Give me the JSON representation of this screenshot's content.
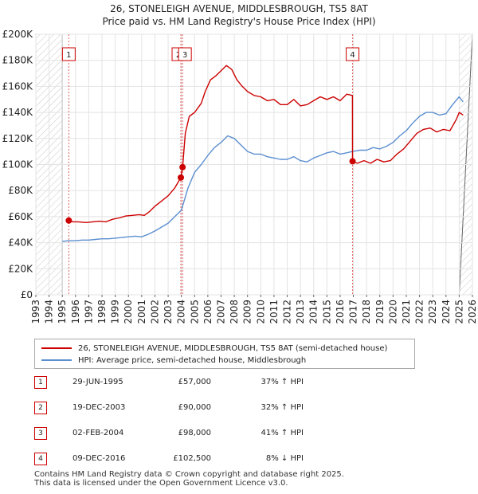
{
  "title_line1": "26, STONELEIGH AVENUE, MIDDLESBROUGH, TS5 8AT",
  "title_line2": "Price paid vs. HM Land Registry's House Price Index (HPI)",
  "chart_data": {
    "type": "line",
    "x_range": [
      1993,
      2026
    ],
    "ylim": [
      0,
      200000
    ],
    "y_ticks": [
      {
        "value": 0,
        "label": "£0"
      },
      {
        "value": 20000,
        "label": "£20K"
      },
      {
        "value": 40000,
        "label": "£40K"
      },
      {
        "value": 60000,
        "label": "£60K"
      },
      {
        "value": 80000,
        "label": "£80K"
      },
      {
        "value": 100000,
        "label": "£100K"
      },
      {
        "value": 120000,
        "label": "£120K"
      },
      {
        "value": 140000,
        "label": "£140K"
      },
      {
        "value": 160000,
        "label": "£160K"
      },
      {
        "value": 180000,
        "label": "£180K"
      },
      {
        "value": 200000,
        "label": "£200K"
      }
    ],
    "x_ticks": [
      "1993",
      "1994",
      "1995",
      "1996",
      "1997",
      "1998",
      "1999",
      "2000",
      "2001",
      "2002",
      "2003",
      "2004",
      "2005",
      "2006",
      "2007",
      "2008",
      "2009",
      "2010",
      "2011",
      "2012",
      "2013",
      "2014",
      "2015",
      "2016",
      "2017",
      "2018",
      "2019",
      "2020",
      "2021",
      "2022",
      "2023",
      "2024",
      "2025",
      "2026"
    ],
    "hatched_ranges": [
      [
        1993,
        1995.0
      ],
      [
        2025.0,
        2026
      ]
    ],
    "series": [
      {
        "name": "26, STONELEIGH AVENUE, MIDDLESBROUGH, TS5 8AT (semi-detached house)",
        "color": "#cc0000",
        "points": [
          [
            1995.49,
            57000
          ],
          [
            1995.8,
            56000
          ],
          [
            1996.2,
            56000
          ],
          [
            1996.8,
            55500
          ],
          [
            1997.3,
            56000
          ],
          [
            1997.8,
            56500
          ],
          [
            1998.3,
            56000
          ],
          [
            1998.8,
            58000
          ],
          [
            1999.3,
            59000
          ],
          [
            1999.8,
            60500
          ],
          [
            2000.3,
            61000
          ],
          [
            2000.8,
            61500
          ],
          [
            2001.2,
            61000
          ],
          [
            2001.6,
            64000
          ],
          [
            2002.0,
            68000
          ],
          [
            2002.5,
            72000
          ],
          [
            2003.0,
            76000
          ],
          [
            2003.5,
            82000
          ],
          [
            2003.96,
            90000
          ],
          [
            2004.09,
            98000
          ],
          [
            2004.3,
            124000
          ],
          [
            2004.6,
            137000
          ],
          [
            2005.0,
            140000
          ],
          [
            2005.5,
            147000
          ],
          [
            2005.8,
            156000
          ],
          [
            2006.2,
            165000
          ],
          [
            2006.6,
            168000
          ],
          [
            2007.0,
            172000
          ],
          [
            2007.4,
            176000
          ],
          [
            2007.8,
            173000
          ],
          [
            2008.2,
            165000
          ],
          [
            2008.6,
            160000
          ],
          [
            2009.0,
            156000
          ],
          [
            2009.5,
            153000
          ],
          [
            2010.0,
            152000
          ],
          [
            2010.5,
            149000
          ],
          [
            2011.0,
            150000
          ],
          [
            2011.5,
            146000
          ],
          [
            2012.0,
            146000
          ],
          [
            2012.5,
            150000
          ],
          [
            2013.0,
            145000
          ],
          [
            2013.5,
            146000
          ],
          [
            2014.0,
            149000
          ],
          [
            2014.5,
            152000
          ],
          [
            2015.0,
            150000
          ],
          [
            2015.5,
            152000
          ],
          [
            2016.0,
            149000
          ],
          [
            2016.5,
            154000
          ],
          [
            2016.93,
            153000
          ],
          [
            2016.94,
            102500
          ],
          [
            2017.3,
            101000
          ],
          [
            2017.8,
            103000
          ],
          [
            2018.3,
            101000
          ],
          [
            2018.8,
            104000
          ],
          [
            2019.3,
            102000
          ],
          [
            2019.8,
            103000
          ],
          [
            2020.3,
            108000
          ],
          [
            2020.8,
            112000
          ],
          [
            2021.3,
            118000
          ],
          [
            2021.8,
            124000
          ],
          [
            2022.3,
            127000
          ],
          [
            2022.8,
            128000
          ],
          [
            2023.3,
            125000
          ],
          [
            2023.8,
            127000
          ],
          [
            2024.3,
            126000
          ],
          [
            2024.8,
            135000
          ],
          [
            2025.0,
            140000
          ],
          [
            2025.3,
            138000
          ]
        ]
      },
      {
        "name": "HPI: Average price, semi-detached house, Middlesbrough",
        "color": "#5b8fd0",
        "points": [
          [
            1995.0,
            41000
          ],
          [
            1995.5,
            41500
          ],
          [
            1996.0,
            41500
          ],
          [
            1996.5,
            42000
          ],
          [
            1997.0,
            42000
          ],
          [
            1997.5,
            42500
          ],
          [
            1998.0,
            43000
          ],
          [
            1998.5,
            43000
          ],
          [
            1999.0,
            43500
          ],
          [
            1999.5,
            44000
          ],
          [
            2000.0,
            44500
          ],
          [
            2000.5,
            45000
          ],
          [
            2001.0,
            44500
          ],
          [
            2001.5,
            46500
          ],
          [
            2002.0,
            49000
          ],
          [
            2002.5,
            52000
          ],
          [
            2003.0,
            55000
          ],
          [
            2003.5,
            60000
          ],
          [
            2004.0,
            65000
          ],
          [
            2004.5,
            82000
          ],
          [
            2005.0,
            94000
          ],
          [
            2005.5,
            100000
          ],
          [
            2006.0,
            107000
          ],
          [
            2006.5,
            113000
          ],
          [
            2007.0,
            117000
          ],
          [
            2007.5,
            122000
          ],
          [
            2008.0,
            120000
          ],
          [
            2008.5,
            115000
          ],
          [
            2009.0,
            110000
          ],
          [
            2009.5,
            108000
          ],
          [
            2010.0,
            108000
          ],
          [
            2010.5,
            106000
          ],
          [
            2011.0,
            105000
          ],
          [
            2011.5,
            104000
          ],
          [
            2012.0,
            104000
          ],
          [
            2012.5,
            106000
          ],
          [
            2013.0,
            103000
          ],
          [
            2013.5,
            102000
          ],
          [
            2014.0,
            105000
          ],
          [
            2014.5,
            107000
          ],
          [
            2015.0,
            109000
          ],
          [
            2015.5,
            110000
          ],
          [
            2016.0,
            108000
          ],
          [
            2016.5,
            109000
          ],
          [
            2016.93,
            110000
          ],
          [
            2017.5,
            111000
          ],
          [
            2018.0,
            111000
          ],
          [
            2018.5,
            113000
          ],
          [
            2019.0,
            112000
          ],
          [
            2019.5,
            114000
          ],
          [
            2020.0,
            117000
          ],
          [
            2020.5,
            122000
          ],
          [
            2021.0,
            126000
          ],
          [
            2021.5,
            132000
          ],
          [
            2022.0,
            137000
          ],
          [
            2022.5,
            140000
          ],
          [
            2023.0,
            140000
          ],
          [
            2023.5,
            138000
          ],
          [
            2024.0,
            139000
          ],
          [
            2024.5,
            146000
          ],
          [
            2025.0,
            152000
          ],
          [
            2025.3,
            148000
          ]
        ]
      }
    ],
    "sales": [
      {
        "marker": "1",
        "x": 1995.49,
        "price": 57000
      },
      {
        "marker": "2",
        "x": 2003.96,
        "price": 90000
      },
      {
        "marker": "3",
        "x": 2004.09,
        "price": 98000
      },
      {
        "marker": "4",
        "x": 2016.94,
        "price": 102500
      }
    ],
    "box_markers": [
      {
        "label": "1",
        "x": 1995.49
      },
      {
        "label": "2",
        "x": 2003.96
      },
      {
        "label": "3",
        "x": 2004.09
      },
      {
        "label": "4",
        "x": 2016.94
      }
    ]
  },
  "legend": {
    "property_label": "26, STONELEIGH AVENUE, MIDDLESBROUGH, TS5 8AT (semi-detached house)",
    "hpi_label": "HPI: Average price, semi-detached house, Middlesbrough",
    "property_color": "#cc0000",
    "hpi_color": "#5b8fd0"
  },
  "transactions": [
    {
      "num": "1",
      "date": "29-JUN-1995",
      "price": "£57,000",
      "hpi": "37% ↑ HPI"
    },
    {
      "num": "2",
      "date": "19-DEC-2003",
      "price": "£90,000",
      "hpi": "32% ↑ HPI"
    },
    {
      "num": "3",
      "date": "02-FEB-2004",
      "price": "£98,000",
      "hpi": "41% ↑ HPI"
    },
    {
      "num": "4",
      "date": "09-DEC-2016",
      "price": "£102,500",
      "hpi": "8% ↓ HPI"
    }
  ],
  "footer_line1": "Contains HM Land Registry data © Crown copyright and database right 2025.",
  "footer_line2": "This data is licensed under the Open Government Licence v3.0."
}
